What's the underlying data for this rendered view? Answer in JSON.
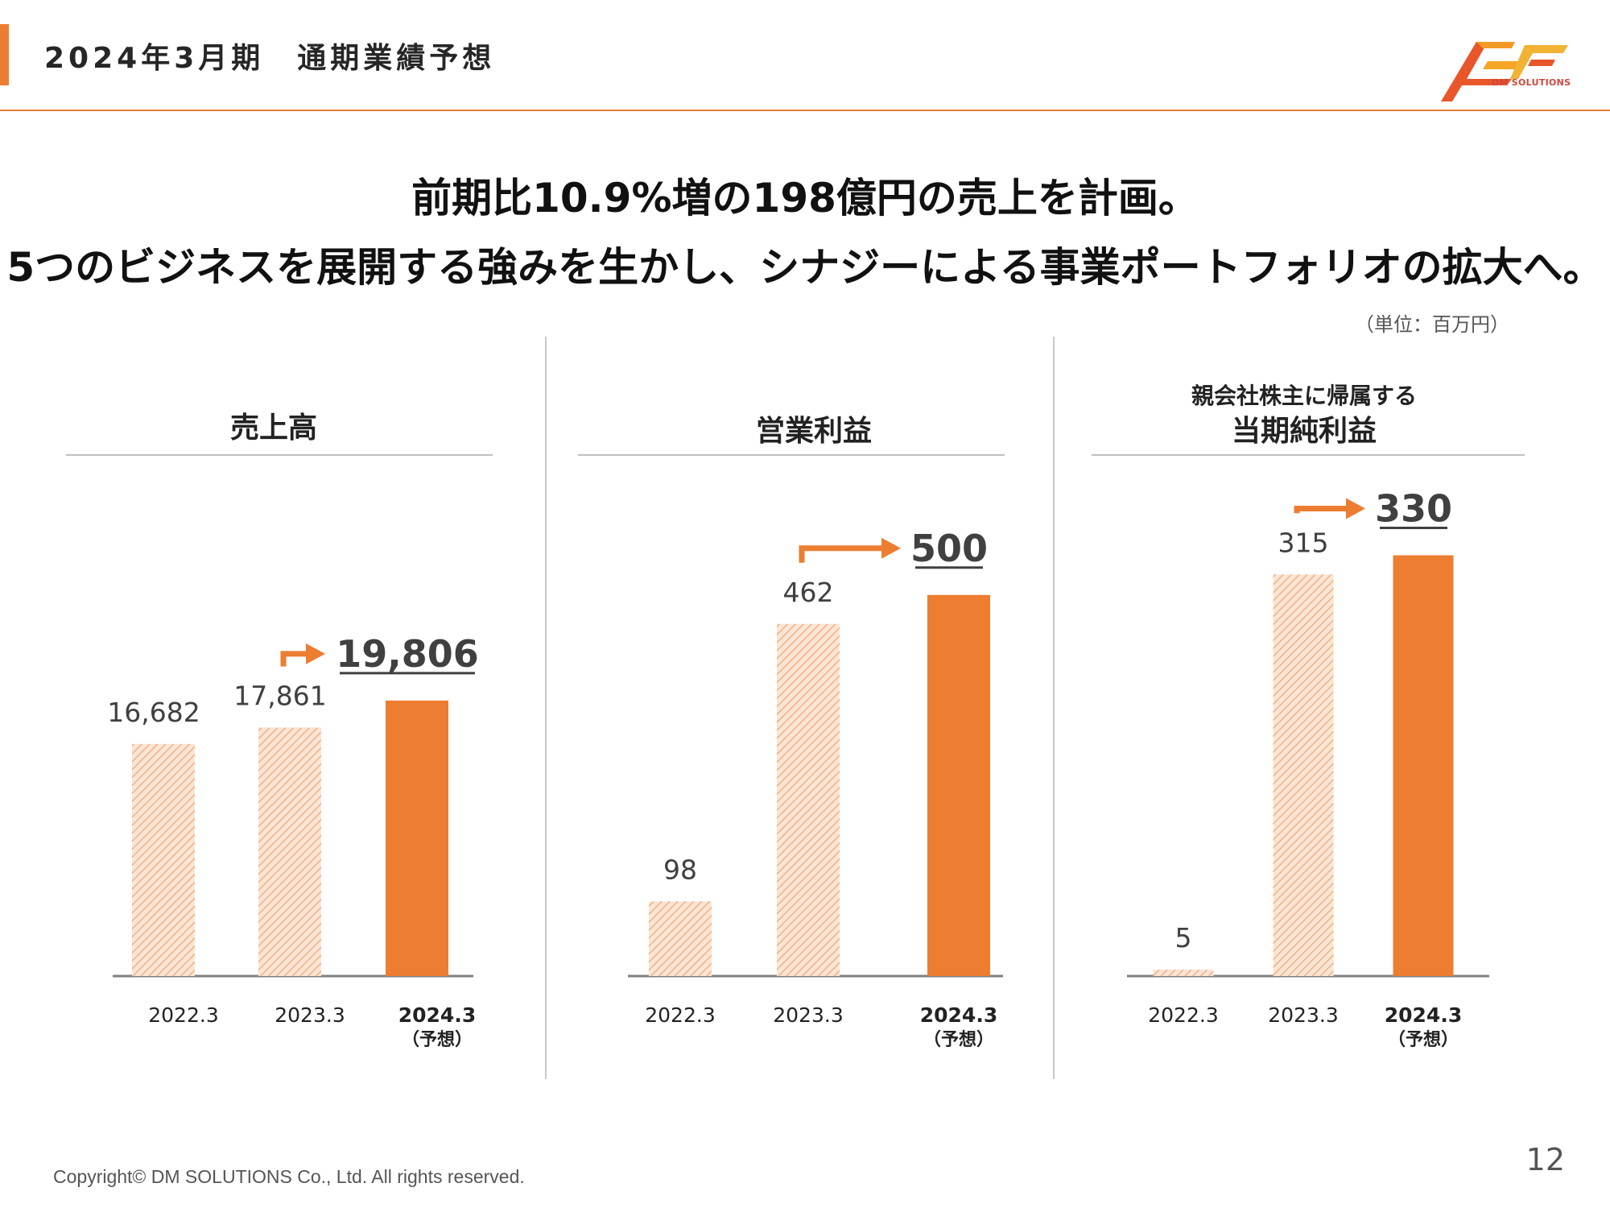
{
  "header": {
    "title": "2024年3月期　通期業績予想",
    "logo_text": "DM SOLUTIONS"
  },
  "headline": {
    "line1": "前期比10.9%増の198億円の売上を計画。",
    "line2": "5つのビジネスを展開する強みを生かし、シナジーによる事業ポートフォリオの拡大へ。"
  },
  "unit_label": "（単位：百万円）",
  "colors": {
    "accent": "#ED7D31",
    "hatch_stroke": "#F4B183",
    "axis": "#7f7f7f",
    "value_text": "#404040",
    "forecast_value_text": "#404040"
  },
  "chart_data": [
    {
      "type": "bar",
      "title": "売上高",
      "subtitle": "",
      "categories": [
        "2022.3",
        "2023.3",
        "2024.3"
      ],
      "category_notes": [
        "",
        "",
        "（予想）"
      ],
      "values": [
        16682,
        17861,
        19806
      ],
      "value_labels": [
        "16,682",
        "17,861",
        "19,806"
      ],
      "highlight_index": 2,
      "ylim": [
        0,
        22000
      ]
    },
    {
      "type": "bar",
      "title": "営業利益",
      "subtitle": "",
      "categories": [
        "2022.3",
        "2023.3",
        "2024.3"
      ],
      "category_notes": [
        "",
        "",
        "（予想）"
      ],
      "values": [
        98,
        462,
        500
      ],
      "value_labels": [
        "98",
        "462",
        "500"
      ],
      "highlight_index": 2,
      "ylim": [
        0,
        560
      ]
    },
    {
      "type": "bar",
      "title": "当期純利益",
      "subtitle": "親会社株主に帰属する",
      "categories": [
        "2022.3",
        "2023.3",
        "2024.3"
      ],
      "category_notes": [
        "",
        "",
        "（予想）"
      ],
      "values": [
        5,
        315,
        330
      ],
      "value_labels": [
        "5",
        "315",
        "330"
      ],
      "highlight_index": 2,
      "ylim": [
        0,
        360
      ]
    }
  ],
  "footer": {
    "copyright": "Copyright© DM SOLUTIONS Co., Ltd. All rights reserved.",
    "page_number": "12"
  }
}
